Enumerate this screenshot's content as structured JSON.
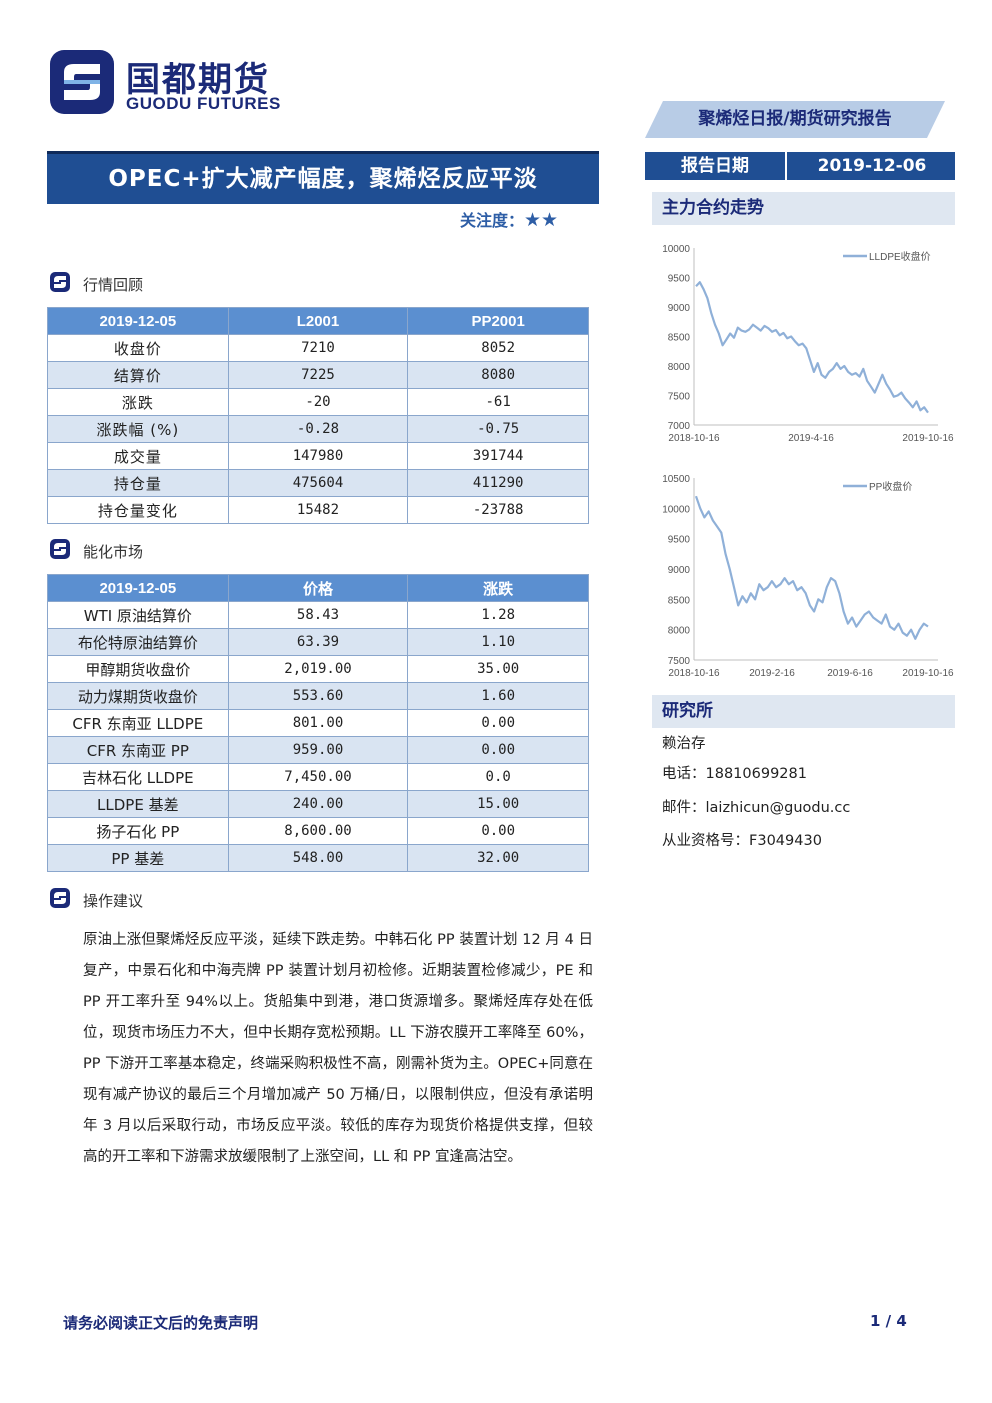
{
  "brand": {
    "name_cn": "国都期货",
    "name_en": "GUODU FUTURES",
    "color": "#1b2a78"
  },
  "header": {
    "report_type": "聚烯烃日报/期货研究报告",
    "date_label": "报告日期",
    "date_value": "2019-12-06",
    "accent_color": "#1f4e93"
  },
  "title": "OPEC+扩大减产幅度，聚烯烃反应平淡",
  "attention": {
    "label": "关注度：",
    "stars": "★★",
    "star_count": 2
  },
  "market_review": {
    "heading": "行情回顾",
    "columns": [
      "2019-12-05",
      "L2001",
      "PP2001"
    ],
    "rows": [
      [
        "收盘价",
        "7210",
        "8052"
      ],
      [
        "结算价",
        "7225",
        "8080"
      ],
      [
        "涨跌",
        "-20",
        "-61"
      ],
      [
        "涨跌幅 (%)",
        "-0.28",
        "-0.75"
      ],
      [
        "成交量",
        "147980",
        "391744"
      ],
      [
        "持仓量",
        "475604",
        "411290"
      ],
      [
        "持仓量变化",
        "15482",
        "-23788"
      ]
    ]
  },
  "energy_market": {
    "heading": "能化市场",
    "columns": [
      "2019-12-05",
      "价格",
      "涨跌"
    ],
    "rows": [
      [
        "WTI 原油结算价",
        "58.43",
        "1.28"
      ],
      [
        "布伦特原油结算价",
        "63.39",
        "1.10"
      ],
      [
        "甲醇期货收盘价",
        "2,019.00",
        "35.00"
      ],
      [
        "动力煤期货收盘价",
        "553.60",
        "1.60"
      ],
      [
        "CFR 东南亚 LLDPE",
        "801.00",
        "0.00"
      ],
      [
        "CFR 东南亚 PP",
        "959.00",
        "0.00"
      ],
      [
        "吉林石化 LLDPE",
        "7,450.00",
        "0.0"
      ],
      [
        "LLDPE 基差",
        "240.00",
        "15.00"
      ],
      [
        "扬子石化 PP",
        "8,600.00",
        "0.00"
      ],
      [
        "PP 基差",
        "548.00",
        "32.00"
      ]
    ]
  },
  "advice": {
    "heading": "操作建议",
    "text": "原油上涨但聚烯烃反应平淡，延续下跌走势。中韩石化 PP 装置计划 12 月 4 日复产，中景石化和中海壳牌 PP 装置计划月初检修。近期装置检修减少，PE 和 PP 开工率升至 94%以上。货船集中到港，港口货源增多。聚烯烃库存处在低位，现货市场压力不大，但中长期存宽松预期。LL 下游农膜开工率降至 60%，PP 下游开工率基本稳定，终端采购积极性不高，刚需补货为主。OPEC+同意在现有减产协议的最后三个月增加减产 50 万桶/日，以限制供应，但没有承诺明年 3 月以后采取行动，市场反应平淡。较低的库存为现货价格提供支撑，但较高的开工率和下游需求放缓限制了上涨空间，LL 和 PP 宜逢高沽空。"
  },
  "sidebar": {
    "trend_heading": "主力合约走势",
    "institute_heading": "研究所",
    "analyst": "赖治存",
    "phone": "电话：18810699281",
    "email": "邮件：laizhicun@guodu.cc",
    "license": "从业资格号：F3049430"
  },
  "chart_data": [
    {
      "type": "line",
      "series": [
        {
          "name": "LLDPE收盘价",
          "color": "#8fb0d8",
          "values": [
            9350,
            9420,
            9300,
            9150,
            8900,
            8700,
            8550,
            8350,
            8450,
            8550,
            8480,
            8650,
            8600,
            8580,
            8620,
            8700,
            8650,
            8600,
            8680,
            8640,
            8580,
            8610,
            8520,
            8560,
            8470,
            8500,
            8420,
            8350,
            8380,
            8300,
            8100,
            7900,
            8050,
            7850,
            7800,
            7900,
            7950,
            8050,
            7950,
            8000,
            7900,
            7850,
            7880,
            7820,
            7950,
            7750,
            7650,
            7550,
            7700,
            7850,
            7700,
            7600,
            7480,
            7500,
            7550,
            7450,
            7380,
            7300,
            7400,
            7250,
            7300,
            7210
          ]
        }
      ],
      "x_tick_labels": [
        "2018-10-16",
        "2019-4-16",
        "2019-10-16"
      ],
      "ylim": [
        7000,
        10000
      ],
      "y_ticks": [
        7000,
        7500,
        8000,
        8500,
        9000,
        9500,
        10000
      ],
      "legend": "top-right"
    },
    {
      "type": "line",
      "series": [
        {
          "name": "PP收盘价",
          "color": "#8fb0d8",
          "values": [
            10200,
            10000,
            9850,
            9950,
            9800,
            9700,
            9600,
            9250,
            9000,
            8700,
            8400,
            8550,
            8450,
            8600,
            8500,
            8750,
            8650,
            8700,
            8800,
            8700,
            8750,
            8850,
            8750,
            8800,
            8650,
            8700,
            8600,
            8400,
            8300,
            8500,
            8450,
            8700,
            8850,
            8800,
            8600,
            8300,
            8100,
            8200,
            8050,
            8150,
            8250,
            8300,
            8200,
            8150,
            8100,
            8250,
            8050,
            8000,
            8100,
            7950,
            7900,
            8000,
            7850,
            8000,
            8100,
            8052
          ]
        }
      ],
      "x_tick_labels": [
        "2018-10-16",
        "2019-2-16",
        "2019-6-16",
        "2019-10-16"
      ],
      "ylim": [
        7500,
        10500
      ],
      "y_ticks": [
        7500,
        8000,
        8500,
        9000,
        9500,
        10000,
        10500
      ],
      "legend": "top-right"
    }
  ],
  "footer": {
    "disclaimer": "请务必阅读正文后的免责声明",
    "page": "1 / 4"
  }
}
